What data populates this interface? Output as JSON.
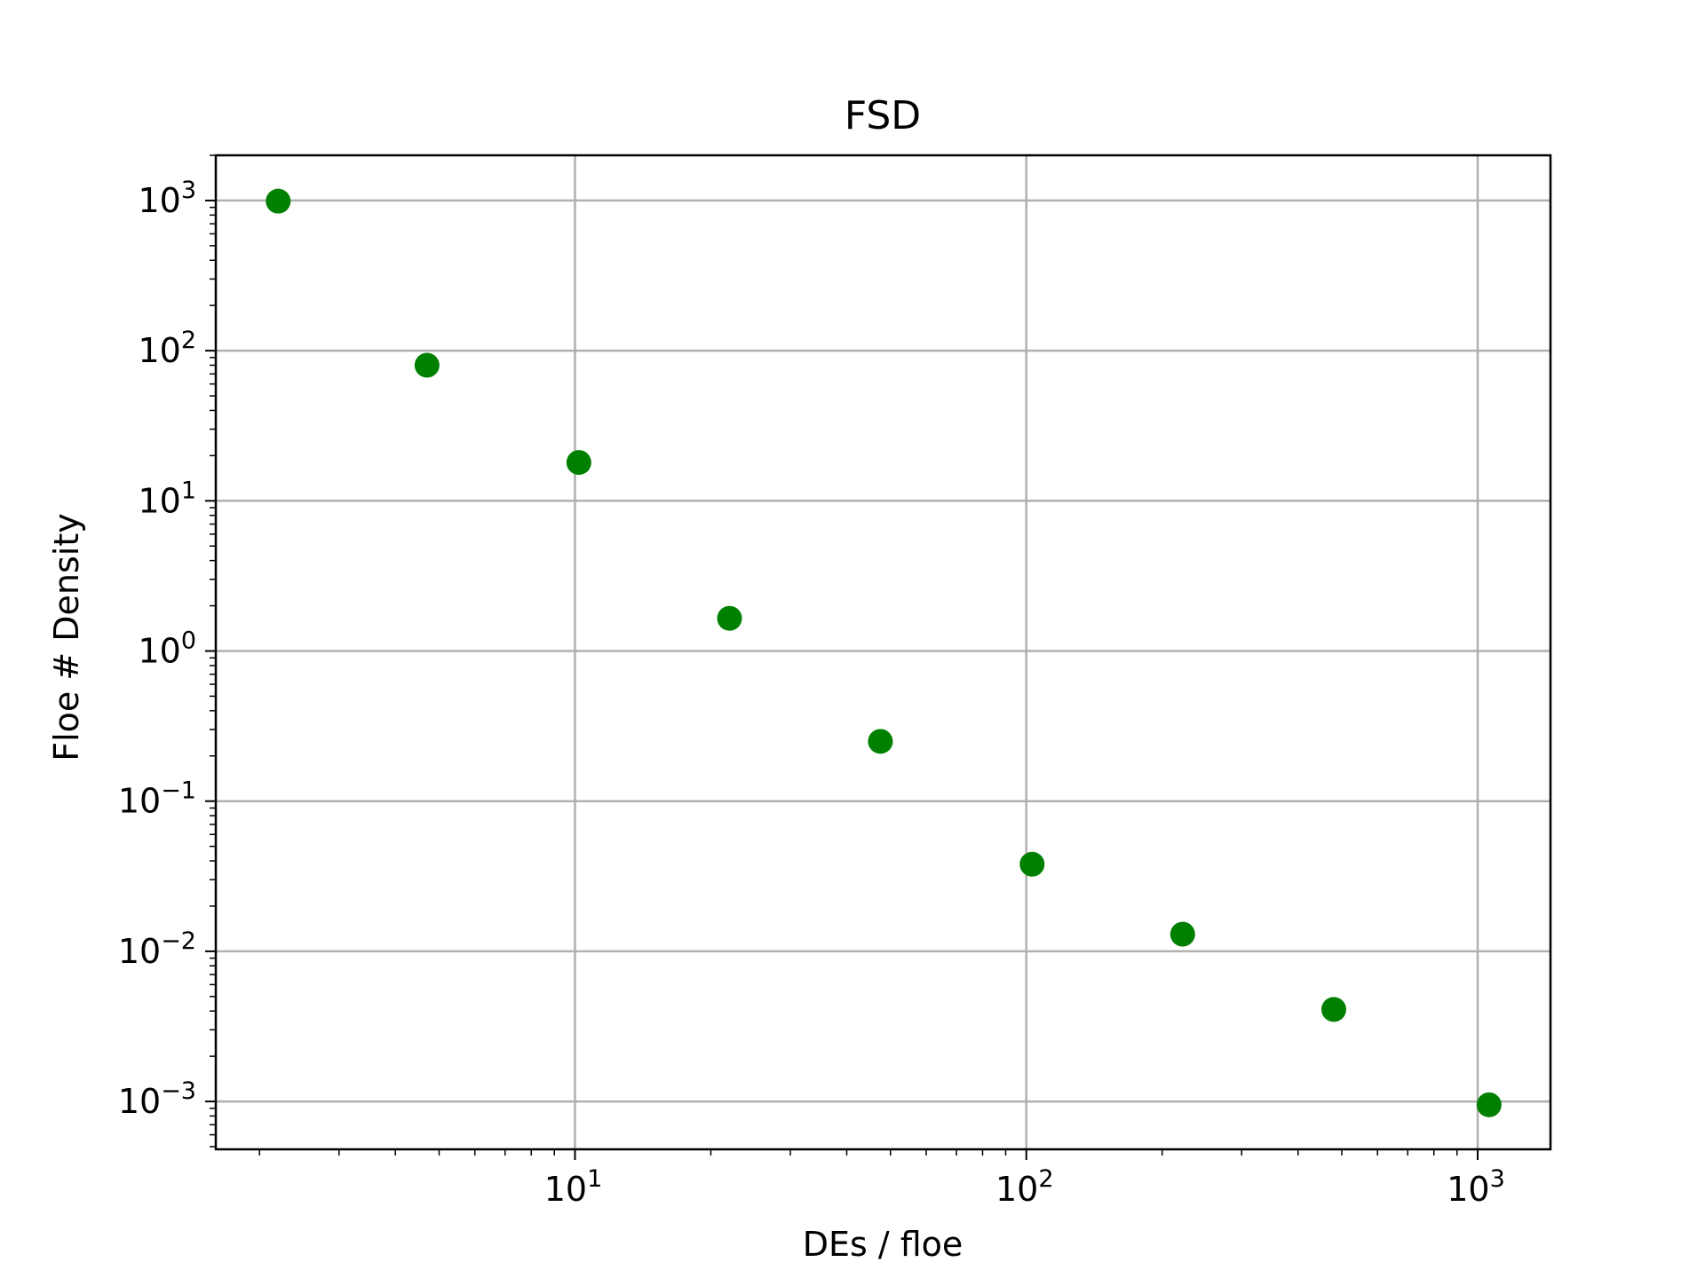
{
  "chart_data": {
    "type": "scatter",
    "title": "FSD",
    "xlabel": "DEs / floe",
    "ylabel": "Floe # Density",
    "xscale": "log",
    "yscale": "log",
    "xlim": [
      1.6,
      1450
    ],
    "ylim": [
      0.00048,
      2000
    ],
    "grid": true,
    "marker_color": "#008000",
    "x_ticks": [
      {
        "value": 10,
        "base": "10",
        "exp": "1"
      },
      {
        "value": 100,
        "base": "10",
        "exp": "2"
      },
      {
        "value": 1000,
        "base": "10",
        "exp": "3"
      }
    ],
    "y_ticks": [
      {
        "value": 1000,
        "base": "10",
        "exp": "3"
      },
      {
        "value": 100,
        "base": "10",
        "exp": "2"
      },
      {
        "value": 10,
        "base": "10",
        "exp": "1"
      },
      {
        "value": 1,
        "base": "10",
        "exp": "0"
      },
      {
        "value": 0.1,
        "base": "10",
        "exp": "−1"
      },
      {
        "value": 0.01,
        "base": "10",
        "exp": "−2"
      },
      {
        "value": 0.001,
        "base": "10",
        "exp": "−3"
      }
    ],
    "points": [
      {
        "x": 2.2,
        "y": 990
      },
      {
        "x": 4.7,
        "y": 80
      },
      {
        "x": 10.2,
        "y": 18
      },
      {
        "x": 22,
        "y": 1.65
      },
      {
        "x": 47.5,
        "y": 0.25
      },
      {
        "x": 103,
        "y": 0.038
      },
      {
        "x": 222,
        "y": 0.013
      },
      {
        "x": 480,
        "y": 0.0041
      },
      {
        "x": 1060,
        "y": 0.00095
      }
    ]
  }
}
